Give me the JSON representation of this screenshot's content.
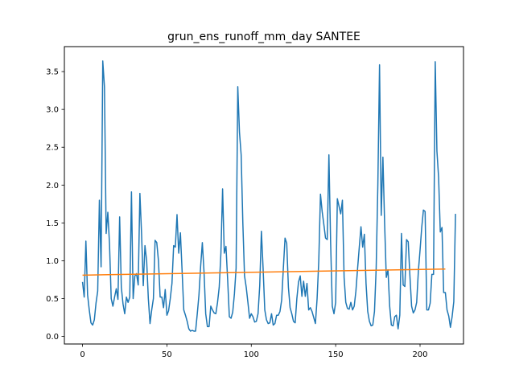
{
  "chart_data": {
    "type": "line",
    "title": "grun_ens_runoff_mm_day SANTEE",
    "xlabel": "",
    "ylabel": "",
    "xlim": [
      -10.75,
      225.75
    ],
    "ylim": [
      -0.1,
      3.83
    ],
    "grid": false,
    "x_ticks": [
      0,
      50,
      100,
      150,
      200
    ],
    "y_ticks": [
      0.0,
      0.5,
      1.0,
      1.5,
      2.0,
      2.5,
      3.0,
      3.5
    ],
    "colors": {
      "series1": "#1f77b4",
      "series2": "#ff7f0e",
      "axis": "#000000"
    },
    "series": [
      {
        "color": "#1f77b4",
        "x_start": 0,
        "values": [
          0.72,
          0.52,
          1.26,
          0.55,
          0.35,
          0.18,
          0.15,
          0.22,
          0.44,
          0.6,
          1.8,
          0.92,
          3.64,
          3.3,
          1.36,
          1.64,
          1.22,
          0.5,
          0.4,
          0.52,
          0.63,
          0.49,
          1.58,
          0.65,
          0.43,
          0.3,
          0.52,
          0.45,
          0.52,
          1.91,
          0.5,
          0.8,
          0.83,
          0.68,
          1.89,
          1.35,
          0.67,
          1.2,
          1.0,
          0.5,
          0.17,
          0.35,
          0.5,
          1.27,
          1.24,
          1.0,
          0.52,
          0.52,
          0.38,
          0.62,
          0.28,
          0.34,
          0.5,
          0.7,
          1.2,
          1.18,
          1.61,
          1.1,
          1.37,
          0.87,
          0.35,
          0.28,
          0.2,
          0.1,
          0.07,
          0.08,
          0.07,
          0.07,
          0.3,
          0.55,
          0.93,
          1.24,
          0.85,
          0.3,
          0.13,
          0.13,
          0.4,
          0.35,
          0.31,
          0.3,
          0.45,
          0.65,
          1.1,
          1.95,
          1.1,
          1.19,
          0.75,
          0.26,
          0.24,
          0.32,
          0.56,
          0.9,
          3.3,
          2.7,
          2.4,
          1.5,
          0.8,
          0.65,
          0.45,
          0.24,
          0.3,
          0.26,
          0.19,
          0.2,
          0.3,
          0.67,
          1.39,
          0.9,
          0.35,
          0.22,
          0.17,
          0.18,
          0.3,
          0.15,
          0.17,
          0.28,
          0.28,
          0.33,
          0.48,
          0.9,
          1.3,
          1.23,
          0.65,
          0.38,
          0.3,
          0.2,
          0.18,
          0.5,
          0.72,
          0.8,
          0.53,
          0.73,
          0.53,
          0.7,
          0.35,
          0.38,
          0.33,
          0.25,
          0.17,
          0.5,
          1.0,
          1.88,
          1.65,
          1.48,
          1.3,
          1.28,
          2.4,
          1.25,
          0.4,
          0.3,
          0.45,
          1.82,
          1.72,
          1.62,
          1.8,
          0.78,
          0.45,
          0.37,
          0.36,
          0.45,
          0.35,
          0.4,
          0.6,
          0.9,
          1.18,
          1.45,
          1.18,
          1.35,
          0.7,
          0.33,
          0.2,
          0.14,
          0.15,
          0.33,
          0.9,
          2.0,
          3.59,
          1.6,
          2.37,
          1.5,
          0.78,
          0.88,
          0.4,
          0.15,
          0.14,
          0.26,
          0.28,
          0.1,
          0.28,
          1.36,
          0.68,
          0.66,
          1.28,
          1.25,
          0.8,
          0.4,
          0.31,
          0.35,
          0.45,
          0.86,
          1.14,
          1.44,
          1.67,
          1.65,
          0.35,
          0.35,
          0.44,
          0.82,
          0.82,
          3.63,
          2.45,
          2.1,
          1.38,
          1.44,
          0.58,
          0.58,
          0.35,
          0.27,
          0.12,
          0.26,
          0.46,
          1.62
        ]
      },
      {
        "color": "#ff7f0e",
        "x": [
          0,
          215
        ],
        "values": [
          0.81,
          0.89
        ]
      }
    ]
  }
}
